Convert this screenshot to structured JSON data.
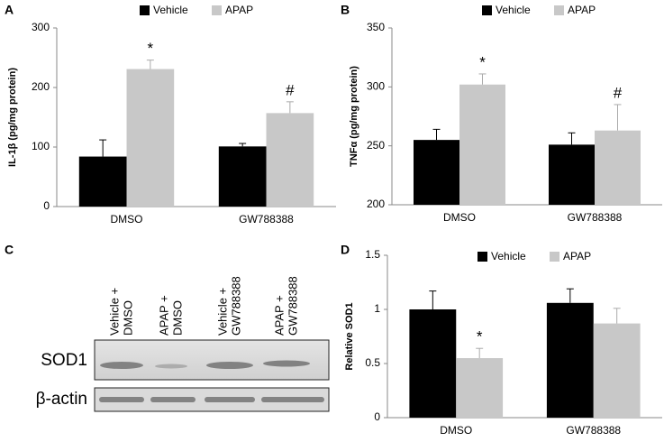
{
  "chart_data": [
    {
      "type": "bar",
      "label": "A",
      "ylabel": "IL-1β (pg/mg protein)",
      "categories": [
        "DMSO",
        "GW788388"
      ],
      "ylim": [
        0,
        300
      ],
      "yticks": [
        0,
        100,
        200,
        300
      ],
      "series": [
        {
          "name": "Vehicle",
          "color": "#000000",
          "values": [
            84,
            101
          ],
          "errors": [
            28,
            5
          ],
          "annotations": [
            null,
            null
          ]
        },
        {
          "name": "APAP",
          "color": "#c8c8c8",
          "values": [
            231,
            157
          ],
          "errors": [
            15,
            19
          ],
          "annotations": [
            "*",
            "#"
          ]
        }
      ]
    },
    {
      "type": "bar",
      "label": "B",
      "ylabel": "TNFα (pg/mg protein)",
      "categories": [
        "DMSO",
        "GW788388"
      ],
      "ylim": [
        200,
        350
      ],
      "yticks": [
        200,
        250,
        300,
        350
      ],
      "series": [
        {
          "name": "Vehicle",
          "color": "#000000",
          "values": [
            255,
            251
          ],
          "errors": [
            9,
            10
          ],
          "annotations": [
            null,
            null
          ]
        },
        {
          "name": "APAP",
          "color": "#c8c8c8",
          "values": [
            302,
            263
          ],
          "errors": [
            9,
            22
          ],
          "annotations": [
            "*",
            "#"
          ]
        }
      ]
    },
    {
      "type": "bar",
      "label": "D",
      "ylabel": "Relative SOD1",
      "categories": [
        "DMSO",
        "GW788388"
      ],
      "ylim": [
        0,
        1.5
      ],
      "yticks": [
        0,
        0.5,
        1,
        1.5
      ],
      "series": [
        {
          "name": "Vehicle",
          "color": "#000000",
          "values": [
            1.0,
            1.06
          ],
          "errors": [
            0.17,
            0.13
          ],
          "annotations": [
            null,
            null
          ]
        },
        {
          "name": "APAP",
          "color": "#c8c8c8",
          "values": [
            0.55,
            0.87
          ],
          "errors": [
            0.09,
            0.14
          ],
          "annotations": [
            "*",
            null
          ]
        }
      ]
    }
  ],
  "blot": {
    "label": "C",
    "lanes": [
      [
        "Vehicle +",
        "DMSO"
      ],
      [
        "APAP +",
        "DMSO"
      ],
      [
        "Vehicle +",
        "GW788388"
      ],
      [
        "APAP +",
        "GW788388"
      ]
    ],
    "rows": [
      "SOD1",
      "β-actin"
    ]
  }
}
